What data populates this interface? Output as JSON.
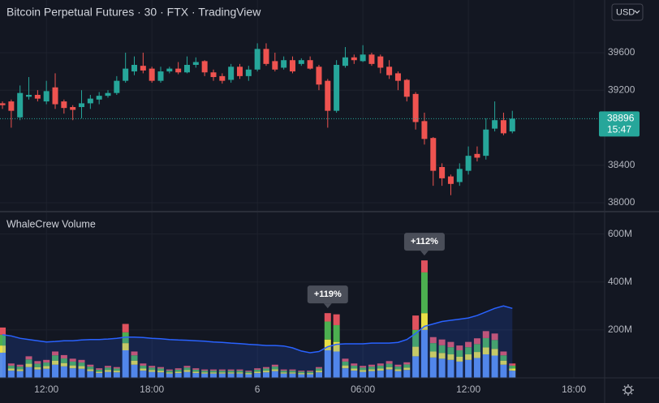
{
  "header": {
    "title": "Bitcoin Perpetual Futures · 30 · FTX · TradingView",
    "currency_button": "USD",
    "countdown": "15:47"
  },
  "chart_data": [
    {
      "type": "candlestick",
      "categories": [
        null,
        null,
        null,
        null,
        null,
        null,
        null,
        null,
        null,
        null,
        null,
        null,
        null,
        null,
        null,
        null,
        null,
        null,
        null,
        null,
        null,
        null,
        null,
        null,
        null,
        null,
        null,
        null,
        null,
        null,
        null,
        null,
        null,
        null,
        null,
        null,
        null,
        null,
        null,
        null,
        null,
        null,
        null,
        null,
        null,
        null,
        null,
        null,
        null,
        null,
        null,
        null,
        null,
        null,
        null,
        null,
        null,
        null,
        null
      ],
      "open": [
        39060,
        39080,
        38910,
        39130,
        39150,
        39080,
        39230,
        39080,
        39020,
        39020,
        39060,
        39100,
        39140,
        39170,
        39300,
        39400,
        39460,
        39430,
        39300,
        39400,
        39430,
        39390,
        39470,
        39510,
        39390,
        39350,
        39310,
        39450,
        39350,
        39420,
        39640,
        39510,
        39440,
        39520,
        39480,
        39520,
        39450,
        39300,
        38980,
        39460,
        39550,
        39510,
        39580,
        39560,
        39450,
        39380,
        39310,
        39160,
        38870,
        38690,
        38380,
        38280,
        38220,
        38340,
        38520,
        38500,
        38790,
        38880,
        38760
      ],
      "high": [
        39080,
        39100,
        39250,
        39340,
        39200,
        39300,
        39380,
        39100,
        39040,
        39200,
        39150,
        39180,
        39200,
        39350,
        39600,
        39560,
        39600,
        39450,
        39450,
        39450,
        39500,
        39560,
        39550,
        39520,
        39420,
        39380,
        39480,
        39480,
        39460,
        39700,
        39700,
        39600,
        39560,
        39560,
        39540,
        39560,
        39470,
        39320,
        39520,
        39660,
        39580,
        39680,
        39600,
        39580,
        39520,
        39400,
        39320,
        39180,
        38960,
        38700,
        38420,
        38300,
        38420,
        38600,
        38600,
        38900,
        39080,
        38960,
        38980
      ],
      "low": [
        39000,
        38800,
        38880,
        39100,
        39080,
        39050,
        39000,
        38950,
        38880,
        38900,
        39000,
        39050,
        39120,
        39150,
        39280,
        39360,
        39380,
        39280,
        39280,
        39380,
        39370,
        39380,
        39440,
        39350,
        39300,
        39270,
        39280,
        39320,
        39300,
        39400,
        39460,
        39400,
        39420,
        39380,
        39460,
        39420,
        39200,
        38800,
        38960,
        39440,
        39480,
        39500,
        39460,
        39380,
        39320,
        39200,
        39080,
        38780,
        38620,
        38180,
        38180,
        38080,
        38180,
        38300,
        38440,
        38460,
        38760,
        38720,
        38740
      ],
      "close": [
        39040,
        38980,
        39170,
        39150,
        39110,
        39190,
        39050,
        39010,
        38990,
        39060,
        39110,
        39140,
        39170,
        39300,
        39430,
        39470,
        39410,
        39300,
        39400,
        39430,
        39390,
        39470,
        39500,
        39390,
        39340,
        39300,
        39450,
        39350,
        39420,
        39640,
        39480,
        39420,
        39520,
        39400,
        39520,
        39430,
        39260,
        38980,
        39470,
        39550,
        39520,
        39580,
        39480,
        39440,
        39360,
        39300,
        39130,
        38860,
        38680,
        38340,
        38260,
        38200,
        38360,
        38500,
        38480,
        38780,
        38880,
        38740,
        38896
      ],
      "up_color": "#26a69a",
      "down_color": "#ef5350",
      "ylim": [
        37913,
        40162
      ],
      "yticks": [
        38000,
        38400,
        39200,
        39600
      ],
      "xlim": [
        -0.28,
        68.5
      ],
      "xticks": [
        {
          "value": 5,
          "label": "12:00"
        },
        {
          "value": 17,
          "label": "18:00"
        },
        {
          "value": 29,
          "label": "6"
        },
        {
          "value": 41,
          "label": "06:00"
        },
        {
          "value": 53,
          "label": "12:00"
        },
        {
          "value": 65,
          "label": "18:00"
        }
      ],
      "grid": true
    },
    {
      "type": "stacked_bar",
      "title": "WhaleCrew Volume",
      "categories": [
        null,
        null,
        null,
        null,
        null,
        null,
        null,
        null,
        null,
        null,
        null,
        null,
        null,
        null,
        null,
        null,
        null,
        null,
        null,
        null,
        null,
        null,
        null,
        null,
        null,
        null,
        null,
        null,
        null,
        null,
        null,
        null,
        null,
        null,
        null,
        null,
        null,
        null,
        null,
        null,
        null,
        null,
        null,
        null,
        null,
        null,
        null,
        null,
        null,
        null,
        null,
        null,
        null,
        null,
        null,
        null,
        null,
        null,
        null
      ],
      "series": [
        {
          "color": "#5b8ee6",
          "values": [
            105,
            30,
            28,
            45,
            35,
            38,
            55,
            48,
            40,
            38,
            28,
            20,
            25,
            23,
            115,
            55,
            30,
            25,
            23,
            18,
            20,
            25,
            20,
            18,
            18,
            18,
            18,
            18,
            15,
            20,
            23,
            28,
            18,
            18,
            15,
            15,
            23,
            115,
            110,
            40,
            30,
            25,
            28,
            30,
            35,
            28,
            33,
            90,
            200,
            85,
            80,
            75,
            68,
            75,
            83,
            98,
            93,
            55,
            30
          ]
        },
        {
          "color": "#e8e046",
          "values": [
            30,
            9,
            8,
            14,
            10,
            11,
            17,
            14,
            12,
            11,
            8,
            6,
            8,
            7,
            30,
            17,
            9,
            8,
            7,
            5,
            6,
            8,
            6,
            5,
            5,
            5,
            5,
            5,
            5,
            6,
            7,
            8,
            5,
            5,
            5,
            5,
            7,
            45,
            40,
            12,
            9,
            8,
            8,
            9,
            10,
            8,
            10,
            40,
            70,
            25,
            24,
            23,
            20,
            23,
            25,
            29,
            28,
            17,
            9
          ]
        },
        {
          "color": "#4caf50",
          "values": [
            45,
            12,
            11,
            18,
            14,
            15,
            22,
            19,
            16,
            15,
            11,
            8,
            10,
            9,
            45,
            22,
            12,
            10,
            9,
            7,
            8,
            10,
            8,
            7,
            7,
            7,
            7,
            7,
            6,
            8,
            9,
            11,
            7,
            7,
            6,
            6,
            9,
            75,
            70,
            16,
            12,
            10,
            11,
            12,
            14,
            11,
            13,
            70,
            170,
            35,
            32,
            30,
            27,
            30,
            33,
            39,
            37,
            22,
            12
          ]
        },
        {
          "color": "#e0525e",
          "values": [
            30,
            9,
            8,
            13,
            11,
            11,
            16,
            14,
            12,
            11,
            8,
            6,
            7,
            6,
            35,
            16,
            9,
            7,
            6,
            5,
            6,
            7,
            6,
            5,
            5,
            5,
            5,
            5,
            4,
            6,
            6,
            8,
            5,
            5,
            4,
            4,
            6,
            35,
            45,
            12,
            9,
            7,
            8,
            9,
            11,
            8,
            9,
            60,
            50,
            25,
            24,
            22,
            20,
            22,
            24,
            29,
            27,
            16,
            9
          ]
        },
        {
          "type": "line",
          "color": "#2962ff",
          "values": [
            180,
            175,
            165,
            160,
            155,
            150,
            152,
            155,
            155,
            158,
            160,
            160,
            162,
            165,
            170,
            170,
            168,
            165,
            163,
            160,
            158,
            157,
            155,
            153,
            150,
            148,
            145,
            143,
            140,
            138,
            135,
            135,
            133,
            125,
            112,
            105,
            110,
            130,
            140,
            142,
            142,
            142,
            145,
            145,
            145,
            148,
            160,
            185,
            215,
            225,
            235,
            240,
            245,
            250,
            260,
            275,
            290,
            300,
            290
          ]
        }
      ],
      "ylim": [
        0,
        690
      ],
      "yticks": [
        {
          "value": 200,
          "label": "200M"
        },
        {
          "value": 400,
          "label": "400M"
        },
        {
          "value": 600,
          "label": "600M"
        }
      ],
      "annotations": [
        {
          "text": "+119%",
          "x": 37
        },
        {
          "text": "+112%",
          "x": 48
        }
      ],
      "grid": true
    }
  ]
}
